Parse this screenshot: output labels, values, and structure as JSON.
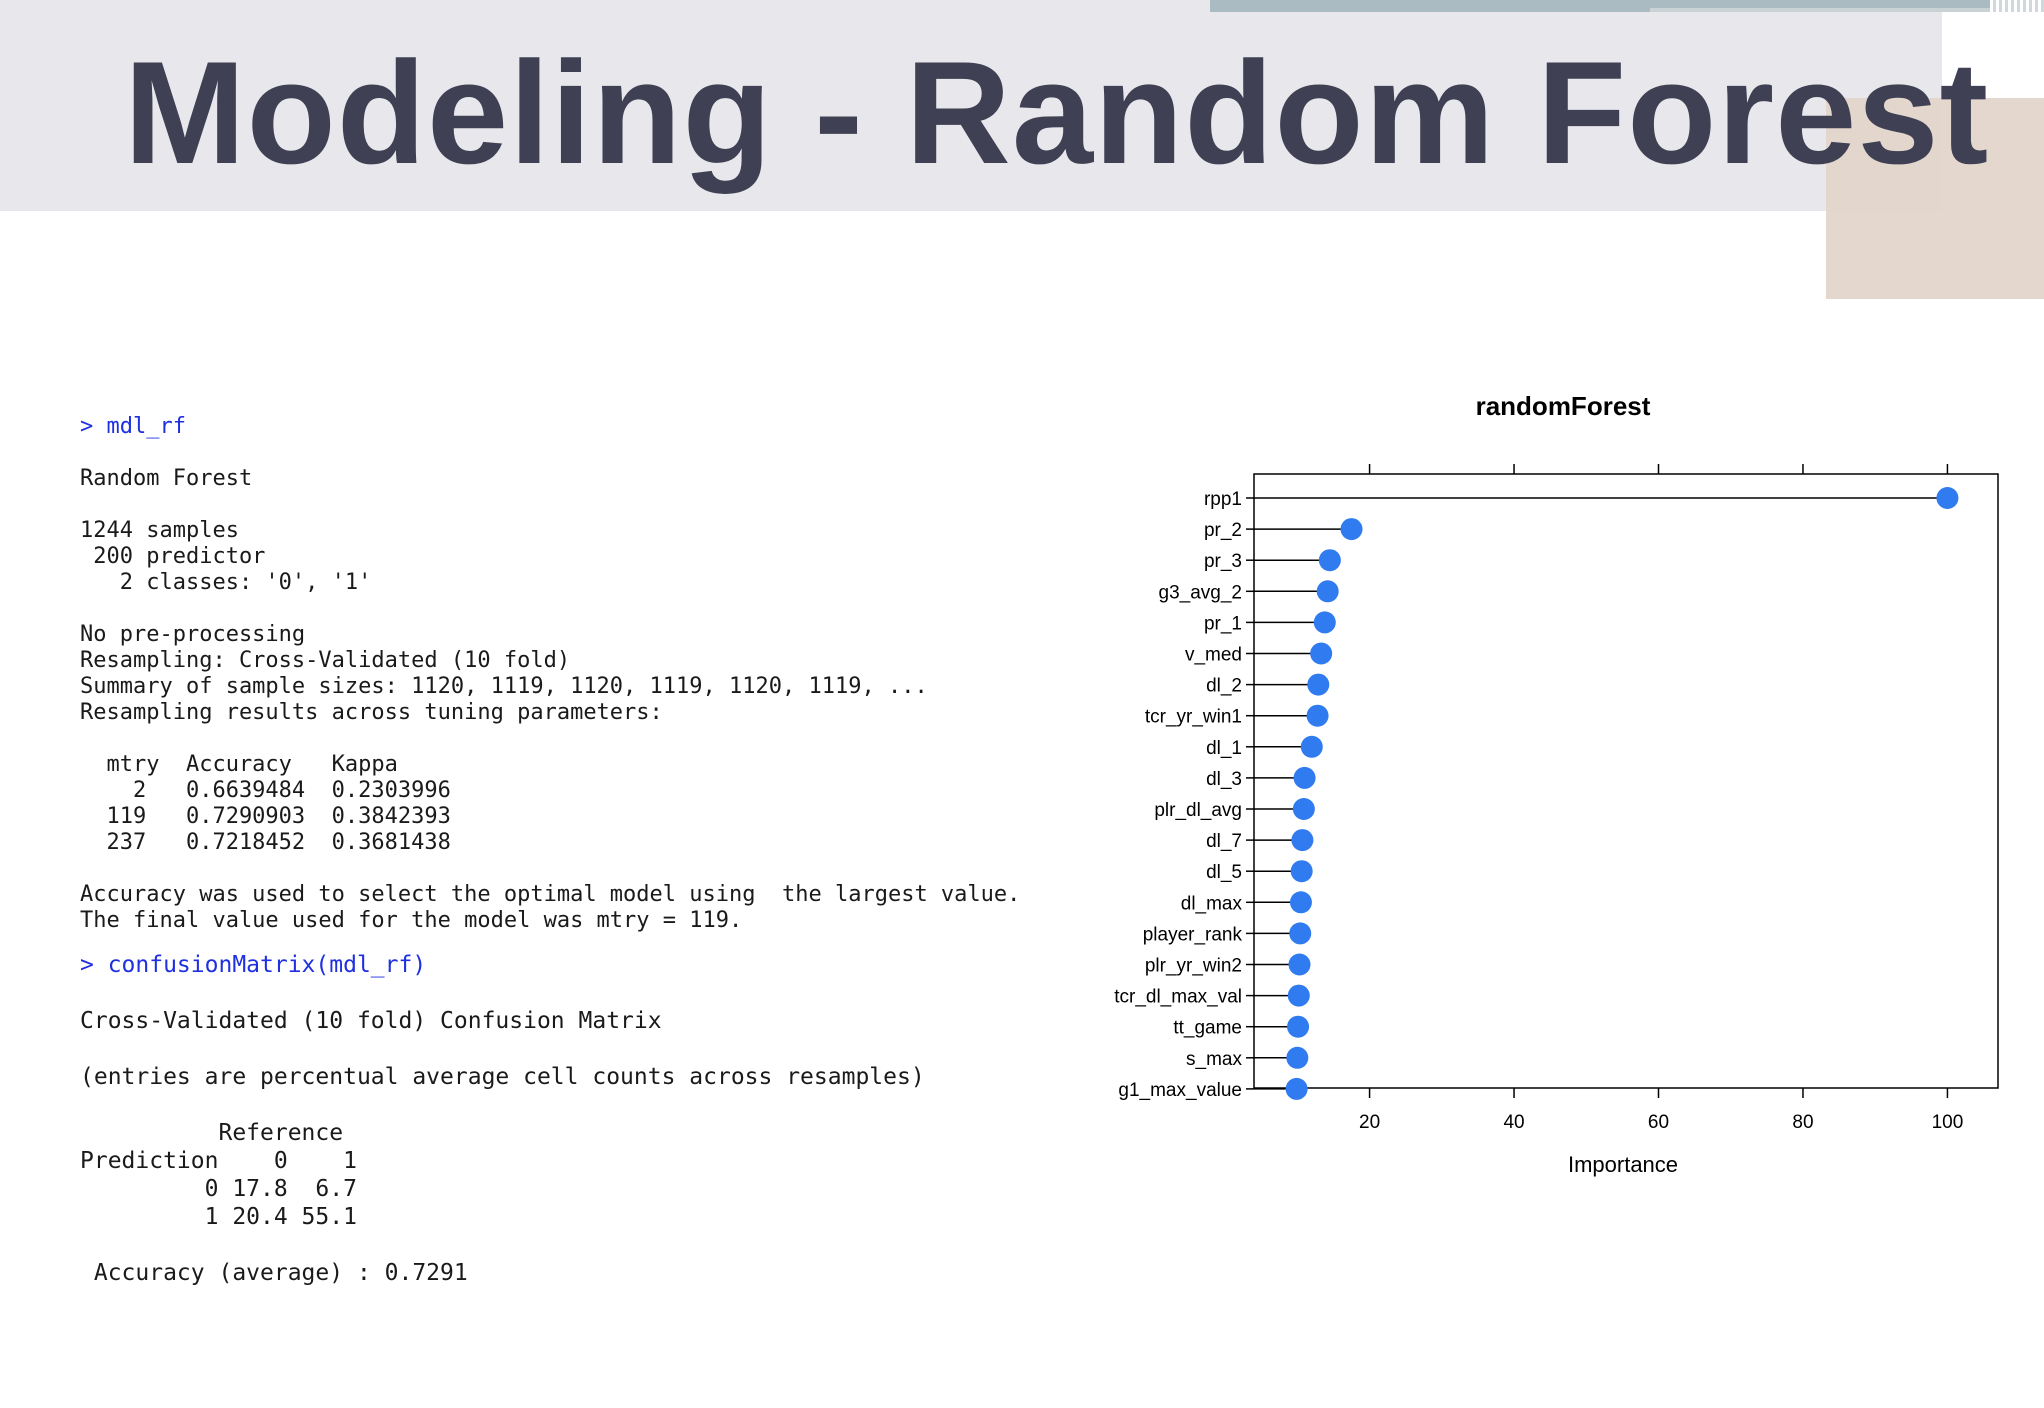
{
  "slide": {
    "title": "Modeling - Random Forest"
  },
  "console_model": {
    "command": "> mdl_rf",
    "lines": [
      "Random Forest",
      "",
      "1244 samples",
      " 200 predictor",
      "   2 classes: '0', '1'",
      "",
      "No pre-processing",
      "Resampling: Cross-Validated (10 fold)",
      "Summary of sample sizes: 1120, 1119, 1120, 1119, 1120, 1119, ...",
      "Resampling results across tuning parameters:",
      "",
      "  mtry  Accuracy   Kappa",
      "    2   0.6639484  0.2303996",
      "  119   0.7290903  0.3842393",
      "  237   0.7218452  0.3681438",
      "",
      "Accuracy was used to select the optimal model using  the largest value.",
      "The final value used for the model was mtry = 119."
    ]
  },
  "console_confusion": {
    "command": "> confusionMatrix(mdl_rf)",
    "lines": [
      "Cross-Validated (10 fold) Confusion Matrix",
      "",
      "(entries are percentual average cell counts across resamples)",
      "",
      "          Reference",
      "Prediction    0    1",
      "         0 17.8  6.7",
      "         1 20.4 55.1",
      "",
      " Accuracy (average) : 0.7291"
    ]
  },
  "chart_data": {
    "type": "scatter",
    "title": "randomForest",
    "xlabel": "Importance",
    "ylabel": "",
    "xlim": [
      4,
      107
    ],
    "x_ticks": [
      20,
      40,
      60,
      80,
      100
    ],
    "grid": false,
    "style": "dotplot with leader lines",
    "point_color": "#2f7bef",
    "categories": [
      "rpp1",
      "pr_2",
      "pr_3",
      "g3_avg_2",
      "pr_1",
      "v_med",
      "dl_2",
      "tcr_yr_win1",
      "dl_1",
      "dl_3",
      "plr_dl_avg",
      "dl_7",
      "dl_5",
      "dl_max",
      "player_rank",
      "plr_yr_win2",
      "tcr_dl_max_val",
      "tt_game",
      "s_max",
      "g1_max_value"
    ],
    "values": [
      100,
      17.5,
      14.5,
      14.2,
      13.8,
      13.3,
      12.9,
      12.8,
      12.0,
      11.0,
      10.9,
      10.7,
      10.6,
      10.5,
      10.4,
      10.3,
      10.2,
      10.1,
      10.0,
      9.9
    ]
  }
}
